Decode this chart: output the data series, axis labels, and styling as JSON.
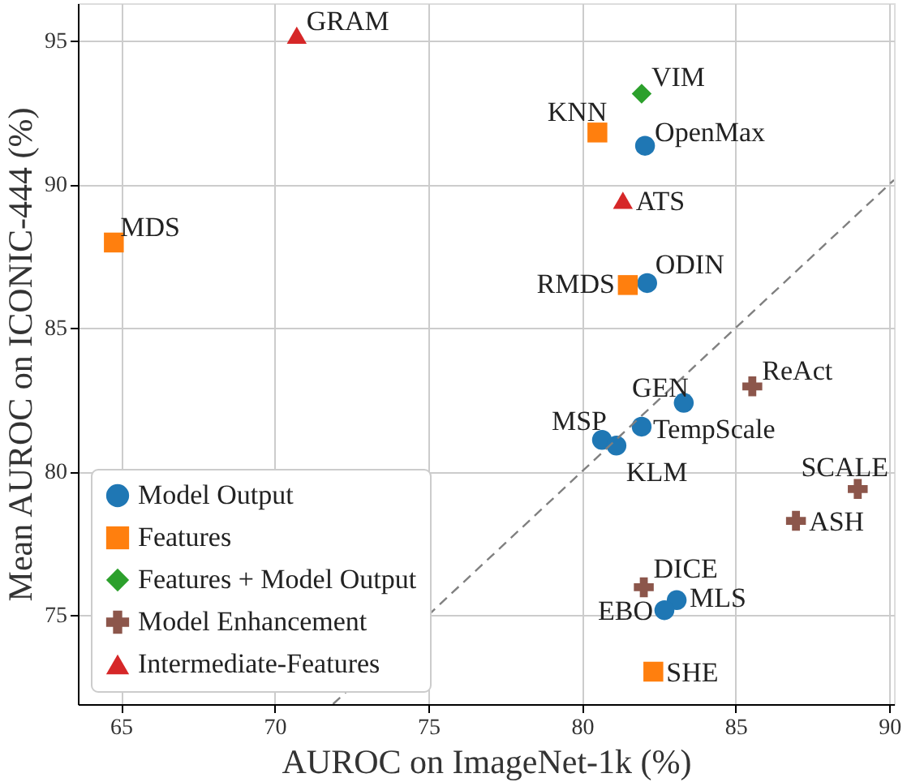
{
  "chart_data": {
    "type": "scatter",
    "xlabel": "AUROC on ImageNet-1k (%)",
    "ylabel": "Mean AUROC on ICONIC-444 (%)",
    "xlim": [
      63.6,
      90.15
    ],
    "ylim": [
      71.9,
      96.3
    ],
    "xticks": [
      65,
      70,
      75,
      80,
      85,
      90
    ],
    "yticks": [
      75,
      80,
      85,
      90,
      95
    ],
    "grid": true,
    "legend": "bottom left",
    "series": [
      {
        "name": "Model Output",
        "color": "#1f77b4",
        "marker": "circle",
        "x": [
          82.05,
          82.12,
          83.31,
          81.94,
          80.65,
          81.12,
          83.08,
          82.68
        ],
        "values": [
          91.34,
          86.56,
          82.39,
          81.56,
          81.1,
          80.9,
          75.52,
          75.17
        ]
      },
      {
        "name": "Features",
        "color": "#ff7f0e",
        "marker": "square",
        "x": [
          80.5,
          64.77,
          81.49,
          82.32
        ],
        "values": [
          91.8,
          87.97,
          86.49,
          73.03
        ]
      },
      {
        "name": "Features + Model Output",
        "color": "#2ca02c",
        "marker": "diamond",
        "x": [
          81.94
        ],
        "values": [
          93.15
        ]
      },
      {
        "name": "Model Enhancement",
        "color": "#8c564b",
        "marker": "cross",
        "x": [
          85.54,
          88.97,
          86.96,
          82.01
        ],
        "values": [
          82.96,
          79.39,
          78.28,
          75.97
        ]
      },
      {
        "name": "Intermediate-Features",
        "color": "#d62728",
        "marker": "triangle",
        "x": [
          70.72,
          81.33
        ],
        "values": [
          95.19,
          89.44
        ]
      },
      {
        "type": "line",
        "color": "#808080",
        "line_style": "dashed",
        "x": [
          71.9,
          90.15
        ],
        "values": [
          71.9,
          90.15
        ]
      }
    ],
    "annotations": [
      {
        "text": "GRAM",
        "x": 70.72,
        "y": 95.19
      },
      {
        "text": "VIM",
        "x": 81.94,
        "y": 93.15
      },
      {
        "text": "KNN",
        "x": 80.5,
        "y": 91.8
      },
      {
        "text": "OpenMax",
        "x": 82.05,
        "y": 91.34
      },
      {
        "text": "ATS",
        "x": 81.33,
        "y": 89.44
      },
      {
        "text": "MDS",
        "x": 64.77,
        "y": 87.97
      },
      {
        "text": "RMDS",
        "x": 81.49,
        "y": 86.49
      },
      {
        "text": "ODIN",
        "x": 82.12,
        "y": 86.56
      },
      {
        "text": "ReAct",
        "x": 85.54,
        "y": 82.96
      },
      {
        "text": "GEN",
        "x": 83.31,
        "y": 82.39
      },
      {
        "text": "TempScale",
        "x": 81.94,
        "y": 81.56
      },
      {
        "text": "MSP",
        "x": 80.65,
        "y": 81.1
      },
      {
        "text": "KLM",
        "x": 81.12,
        "y": 80.9
      },
      {
        "text": "SCALE",
        "x": 88.97,
        "y": 79.39
      },
      {
        "text": "ASH",
        "x": 86.96,
        "y": 78.28
      },
      {
        "text": "DICE",
        "x": 82.01,
        "y": 75.97
      },
      {
        "text": "MLS",
        "x": 83.08,
        "y": 75.52
      },
      {
        "text": "EBO",
        "x": 82.68,
        "y": 75.17
      },
      {
        "text": "SHE",
        "x": 82.32,
        "y": 73.03
      }
    ]
  }
}
